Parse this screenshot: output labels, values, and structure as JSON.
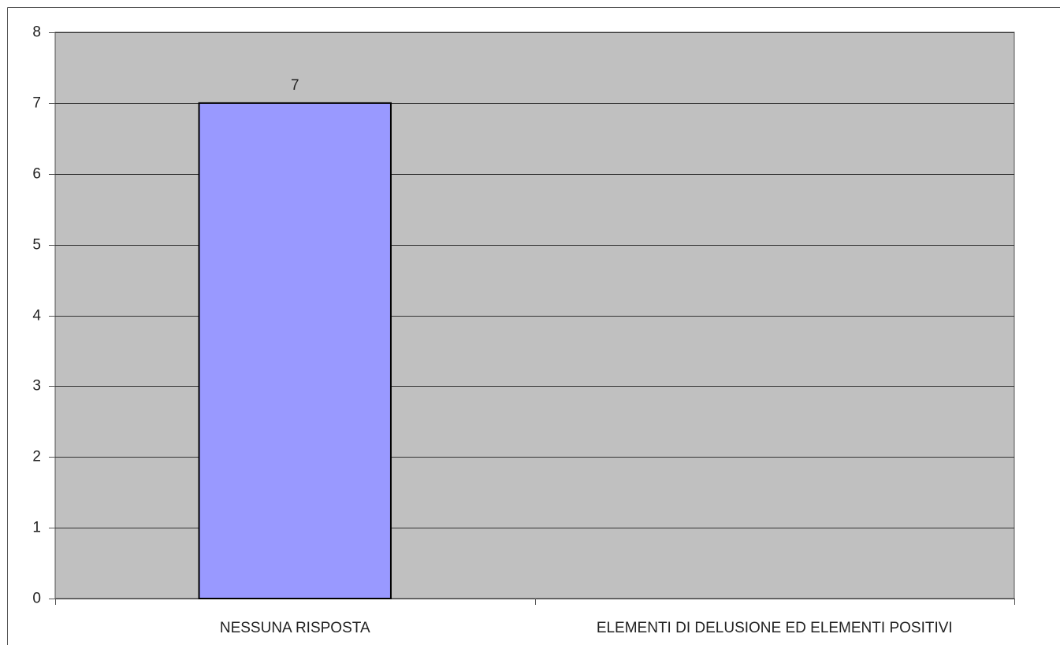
{
  "chart_data": {
    "type": "bar",
    "categories": [
      "NESSUNA RISPOSTA",
      "ELEMENTI DI DELUSIONE ED ELEMENTI POSITIVI"
    ],
    "values": [
      7,
      null
    ],
    "color": "#9999ff",
    "ylim": [
      0,
      8
    ],
    "yticks": [
      0,
      1,
      2,
      3,
      4,
      5,
      6,
      7,
      8
    ],
    "grid": true
  }
}
